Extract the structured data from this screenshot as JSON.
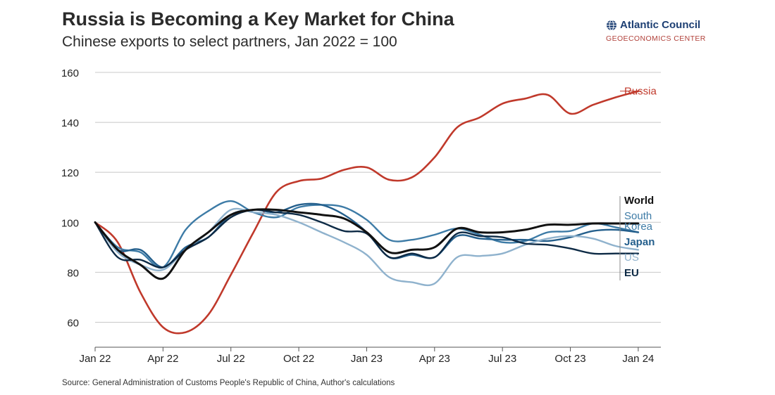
{
  "header": {
    "title": "Russia is Becoming a Key Market for China",
    "subtitle": "Chinese exports to select partners, Jan 2022 = 100"
  },
  "brand": {
    "name": "Atlantic Council",
    "division": "GEOECONOMICS CENTER"
  },
  "footer": {
    "source": "Source: General Administration of Customs People's Republic of China, Author's calculations"
  },
  "chart_data": {
    "type": "line",
    "title": "Russia is Becoming a Key Market for China",
    "subtitle": "Chinese exports to select partners, Jan 2022 = 100",
    "xlabel": "",
    "ylabel": "",
    "ylim": [
      50,
      160
    ],
    "yticks": [
      60,
      80,
      100,
      120,
      140,
      160
    ],
    "xlim": [
      0,
      25
    ],
    "xticks": [
      {
        "x": 0,
        "label": "Jan 22"
      },
      {
        "x": 3,
        "label": "Apr 22"
      },
      {
        "x": 6,
        "label": "Jul 22"
      },
      {
        "x": 9,
        "label": "Oct 22"
      },
      {
        "x": 12,
        "label": "Jan 23"
      },
      {
        "x": 15,
        "label": "Apr 23"
      },
      {
        "x": 18,
        "label": "Jul 23"
      },
      {
        "x": 21,
        "label": "Oct 23"
      },
      {
        "x": 24,
        "label": "Jan 24"
      }
    ],
    "grid": true,
    "legend": "direct labels at line ends (right)",
    "series": [
      {
        "name": "Russia",
        "color": "#c0392b",
        "width": 2.6,
        "values": [
          100,
          92,
          72,
          58,
          56,
          63,
          79,
          96,
          112,
          116.5,
          117.5,
          121,
          122,
          117,
          118,
          126,
          138,
          142,
          147.5,
          149.5,
          151,
          143.5,
          147,
          150,
          152.5
        ]
      },
      {
        "name": "South Korea",
        "color": "#3d7ba6",
        "width": 2.4,
        "values": [
          100,
          90,
          88,
          82,
          97,
          104.5,
          108.5,
          104,
          102,
          106,
          107,
          106,
          101,
          93,
          93,
          95,
          97.5,
          95,
          92,
          92.5,
          96,
          96.5,
          99.5,
          98,
          96
        ]
      },
      {
        "name": "Japan",
        "color": "#245f8c",
        "width": 2.4,
        "values": [
          100,
          89,
          89,
          82,
          90,
          94,
          103,
          105,
          104,
          107,
          107,
          103,
          96,
          86,
          87,
          86,
          94.5,
          93.5,
          93,
          93,
          92.5,
          94,
          96.5,
          97,
          96
        ]
      },
      {
        "name": "US",
        "color": "#8fb2cd",
        "width": 2.4,
        "values": [
          100,
          88,
          83,
          81,
          89,
          96,
          105,
          104,
          103,
          100,
          96,
          92,
          87,
          78,
          76,
          75.5,
          86,
          86.5,
          87.5,
          91,
          93.5,
          94.5,
          93.5,
          90.5,
          89
        ]
      },
      {
        "name": "EU",
        "color": "#0d2a45",
        "width": 2.4,
        "values": [
          100,
          86,
          85,
          82,
          89,
          94,
          102,
          105,
          104,
          103,
          100,
          96.5,
          95.5,
          86,
          87.5,
          86,
          95.5,
          94.5,
          94,
          91.5,
          91,
          89.5,
          87.5,
          87.5,
          87.5
        ]
      },
      {
        "name": "World",
        "color": "#111111",
        "width": 3.0,
        "values": [
          100,
          89,
          83,
          77.5,
          89,
          96,
          103,
          105,
          105,
          104,
          103,
          101.5,
          96,
          88,
          89,
          90,
          97.5,
          96,
          96,
          97,
          99,
          99,
          99.5,
          99.5,
          99.5
        ]
      }
    ],
    "end_labels": [
      {
        "series": "Russia",
        "lines": [
          "Russia"
        ],
        "color": "#c0392b"
      },
      {
        "series": "World",
        "lines": [
          "World"
        ],
        "color": "#111111"
      },
      {
        "series": "South Korea",
        "lines": [
          "South",
          "Korea"
        ],
        "color": "#3d7ba6"
      },
      {
        "series": "Japan",
        "lines": [
          "Japan"
        ],
        "color": "#245f8c"
      },
      {
        "series": "US",
        "lines": [
          "US"
        ],
        "color": "#8fb2cd"
      },
      {
        "series": "EU",
        "lines": [
          "EU"
        ],
        "color": "#0d2a45"
      }
    ]
  }
}
